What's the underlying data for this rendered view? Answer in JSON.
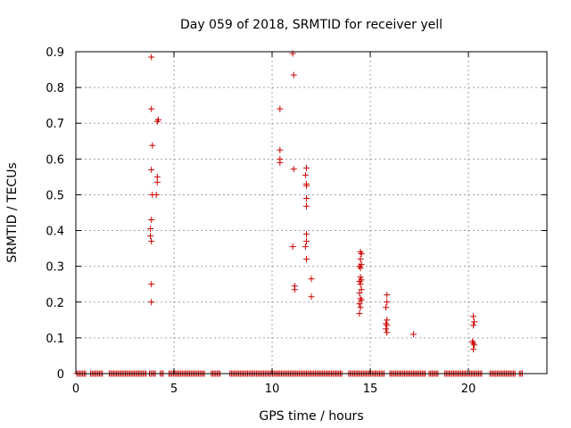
{
  "chart_data": {
    "type": "scatter",
    "title": "Day 059 of 2018, SRMTID for receiver yell",
    "xlabel": "GPS time / hours",
    "ylabel": "SRMTID / TECUs",
    "xlim": [
      0,
      24
    ],
    "ylim": [
      0,
      0.9
    ],
    "grid": true,
    "marker": "+",
    "colors": {
      "points": "#cc0000",
      "grid": "#a0a0a0",
      "axes": "#000000"
    },
    "x_ticks": [
      0,
      5,
      10,
      15,
      20
    ],
    "x_tick_labels": [
      "0",
      "5",
      "10",
      "15",
      "20"
    ],
    "y_ticks": [
      0,
      0.1,
      0.2,
      0.3,
      0.4,
      0.5,
      0.6,
      0.7,
      0.8,
      0.9
    ],
    "y_tick_labels": [
      "0",
      "0.1",
      "0.2",
      "0.3",
      "0.4",
      "0.5",
      "0.6",
      "0.7",
      "0.8",
      "0.9"
    ],
    "points": [
      [
        3.85,
        0.885
      ],
      [
        3.85,
        0.74
      ],
      [
        3.9,
        0.638
      ],
      [
        3.85,
        0.57
      ],
      [
        3.9,
        0.5
      ],
      [
        4.1,
        0.5
      ],
      [
        4.15,
        0.705
      ],
      [
        4.2,
        0.71
      ],
      [
        4.15,
        0.55
      ],
      [
        4.15,
        0.535
      ],
      [
        3.85,
        0.43
      ],
      [
        3.8,
        0.405
      ],
      [
        3.8,
        0.385
      ],
      [
        3.85,
        0.37
      ],
      [
        3.85,
        0.25
      ],
      [
        3.85,
        0.2
      ],
      [
        10.4,
        0.74
      ],
      [
        10.4,
        0.625
      ],
      [
        10.4,
        0.6
      ],
      [
        10.4,
        0.59
      ],
      [
        11.05,
        0.895
      ],
      [
        11.1,
        0.835
      ],
      [
        11.1,
        0.572
      ],
      [
        11.05,
        0.355
      ],
      [
        11.15,
        0.245
      ],
      [
        11.15,
        0.235
      ],
      [
        11.75,
        0.575
      ],
      [
        11.7,
        0.555
      ],
      [
        11.75,
        0.53
      ],
      [
        11.75,
        0.525
      ],
      [
        11.75,
        0.49
      ],
      [
        11.75,
        0.468
      ],
      [
        11.75,
        0.39
      ],
      [
        11.75,
        0.37
      ],
      [
        11.7,
        0.355
      ],
      [
        11.75,
        0.32
      ],
      [
        12.0,
        0.265
      ],
      [
        12.0,
        0.215
      ],
      [
        14.5,
        0.34
      ],
      [
        14.55,
        0.335
      ],
      [
        14.5,
        0.32
      ],
      [
        14.55,
        0.305
      ],
      [
        14.45,
        0.3
      ],
      [
        14.5,
        0.295
      ],
      [
        14.5,
        0.27
      ],
      [
        14.55,
        0.262
      ],
      [
        14.45,
        0.258
      ],
      [
        14.5,
        0.25
      ],
      [
        14.55,
        0.235
      ],
      [
        14.45,
        0.225
      ],
      [
        14.5,
        0.21
      ],
      [
        14.55,
        0.205
      ],
      [
        14.45,
        0.195
      ],
      [
        14.5,
        0.185
      ],
      [
        14.45,
        0.168
      ],
      [
        15.85,
        0.22
      ],
      [
        15.85,
        0.2
      ],
      [
        15.8,
        0.185
      ],
      [
        15.85,
        0.15
      ],
      [
        15.8,
        0.14
      ],
      [
        15.85,
        0.135
      ],
      [
        15.8,
        0.125
      ],
      [
        15.85,
        0.115
      ],
      [
        17.2,
        0.11
      ],
      [
        20.25,
        0.16
      ],
      [
        20.3,
        0.145
      ],
      [
        20.25,
        0.135
      ],
      [
        20.2,
        0.09
      ],
      [
        20.25,
        0.085
      ],
      [
        20.3,
        0.08
      ],
      [
        20.25,
        0.068
      ]
    ],
    "baseline_segments": [
      [
        0.05,
        0.5
      ],
      [
        0.75,
        1.4
      ],
      [
        1.7,
        3.6
      ],
      [
        3.75,
        4.1
      ],
      [
        4.3,
        4.5
      ],
      [
        4.75,
        6.6
      ],
      [
        6.9,
        7.4
      ],
      [
        7.85,
        13.6
      ],
      [
        13.9,
        15.7
      ],
      [
        16.0,
        17.8
      ],
      [
        18.0,
        18.5
      ],
      [
        18.8,
        20.7
      ],
      [
        21.1,
        22.4
      ],
      [
        22.6,
        22.75
      ]
    ]
  }
}
